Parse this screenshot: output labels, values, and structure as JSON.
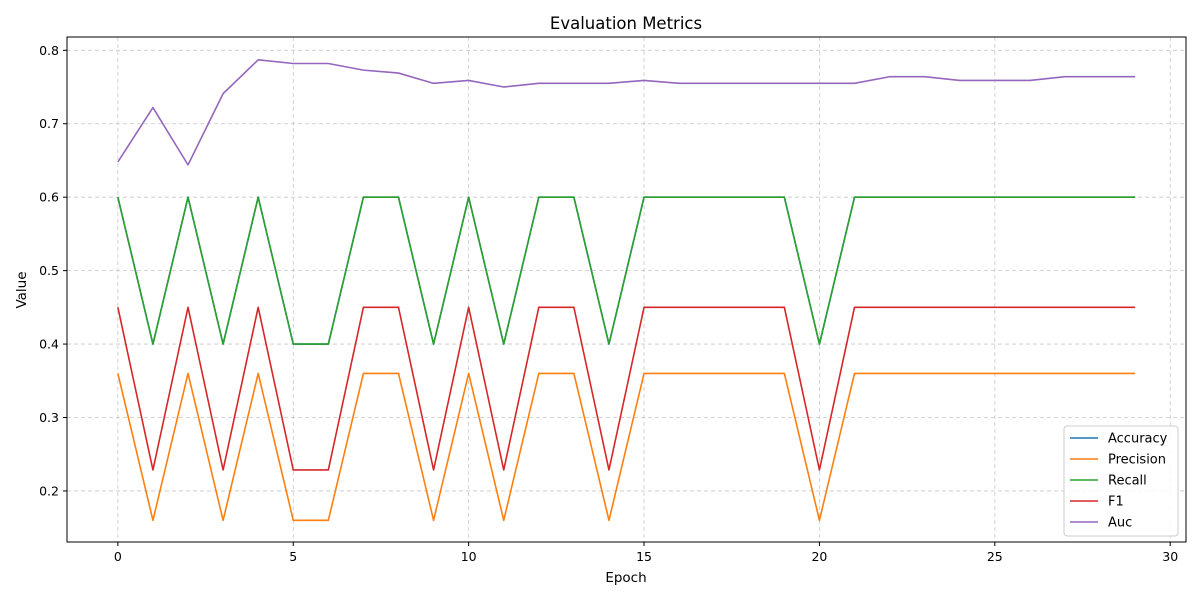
{
  "chart_data": {
    "type": "line",
    "title": "Evaluation Metrics",
    "xlabel": "Epoch",
    "ylabel": "Value",
    "xlim": [
      -1.45,
      30.45
    ],
    "ylim": [
      0.1305,
      0.8181
    ],
    "xticks": [
      0,
      5,
      10,
      15,
      20,
      25,
      30
    ],
    "xtick_labels": [
      "0",
      "5",
      "10",
      "15",
      "20",
      "25",
      "30"
    ],
    "yticks": [
      0.2,
      0.3,
      0.4,
      0.5,
      0.6,
      0.7,
      0.8
    ],
    "ytick_labels": [
      "0.2",
      "0.3",
      "0.4",
      "0.5",
      "0.6",
      "0.7",
      "0.8"
    ],
    "grid": true,
    "legend_position": "lower-right",
    "x": [
      0,
      1,
      2,
      3,
      4,
      5,
      6,
      7,
      8,
      9,
      10,
      11,
      12,
      13,
      14,
      15,
      16,
      17,
      18,
      19,
      20,
      21,
      22,
      23,
      24,
      25,
      26,
      27,
      28,
      29
    ],
    "series": [
      {
        "name": "Accuracy",
        "color": "#1f77b4",
        "values": [
          0.6,
          0.4,
          0.6,
          0.4,
          0.6,
          0.4,
          0.4,
          0.6,
          0.6,
          0.4,
          0.6,
          0.4,
          0.6,
          0.6,
          0.4,
          0.6,
          0.6,
          0.6,
          0.6,
          0.6,
          0.4,
          0.6,
          0.6,
          0.6,
          0.6,
          0.6,
          0.6,
          0.6,
          0.6,
          0.6
        ]
      },
      {
        "name": "Precision",
        "color": "#ff7f0e",
        "values": [
          0.36,
          0.16,
          0.36,
          0.16,
          0.36,
          0.16,
          0.16,
          0.36,
          0.36,
          0.16,
          0.36,
          0.16,
          0.36,
          0.36,
          0.16,
          0.36,
          0.36,
          0.36,
          0.36,
          0.36,
          0.16,
          0.36,
          0.36,
          0.36,
          0.36,
          0.36,
          0.36,
          0.36,
          0.36,
          0.36
        ]
      },
      {
        "name": "Recall",
        "color": "#2ca02c",
        "values": [
          0.6,
          0.4,
          0.6,
          0.4,
          0.6,
          0.4,
          0.4,
          0.6,
          0.6,
          0.4,
          0.6,
          0.4,
          0.6,
          0.6,
          0.4,
          0.6,
          0.6,
          0.6,
          0.6,
          0.6,
          0.4,
          0.6,
          0.6,
          0.6,
          0.6,
          0.6,
          0.6,
          0.6,
          0.6,
          0.6
        ]
      },
      {
        "name": "F1",
        "color": "#d62728",
        "values": [
          0.45,
          0.2286,
          0.45,
          0.2286,
          0.45,
          0.2286,
          0.2286,
          0.45,
          0.45,
          0.2286,
          0.45,
          0.2286,
          0.45,
          0.45,
          0.2286,
          0.45,
          0.45,
          0.45,
          0.45,
          0.45,
          0.2286,
          0.45,
          0.45,
          0.45,
          0.45,
          0.45,
          0.45,
          0.45,
          0.45,
          0.45
        ]
      },
      {
        "name": "Auc",
        "color": "#9467bd",
        "values": [
          0.648,
          0.722,
          0.644,
          0.741,
          0.787,
          0.782,
          0.782,
          0.773,
          0.769,
          0.755,
          0.759,
          0.75,
          0.755,
          0.755,
          0.755,
          0.759,
          0.755,
          0.755,
          0.755,
          0.755,
          0.755,
          0.755,
          0.764,
          0.764,
          0.759,
          0.759,
          0.759,
          0.764,
          0.764,
          0.764
        ]
      }
    ]
  }
}
